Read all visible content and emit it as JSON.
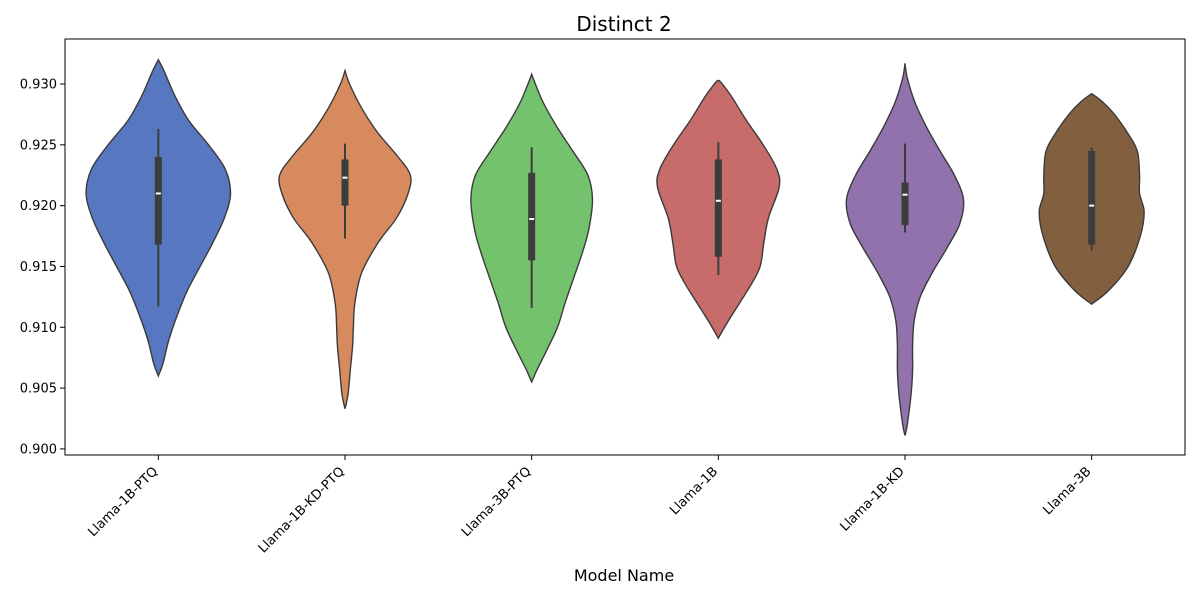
{
  "chart_data": {
    "type": "violin",
    "title": "Distinct 2",
    "xlabel": "Model Name",
    "ylabel": "",
    "ylim": [
      0.8995,
      0.9337
    ],
    "yticks": [
      "0.900",
      "0.905",
      "0.910",
      "0.915",
      "0.920",
      "0.925",
      "0.930"
    ],
    "xtick_rotation_deg": 45,
    "grid": false,
    "legend": "none",
    "categories": [
      "Llama-1B-PTQ",
      "Llama-1B-KD-PTQ",
      "Llama-3B-PTQ",
      "Llama-1B",
      "Llama-1B-KD",
      "Llama-3B"
    ],
    "series": [
      {
        "category": "Llama-1B-PTQ",
        "color": "#5778c0",
        "box": {
          "whisker_low": 0.9117,
          "q1": 0.9168,
          "median": 0.921,
          "q3": 0.924,
          "whisker_high": 0.9263
        },
        "density": [
          [
            0.906,
            0.0
          ],
          [
            0.907,
            0.06
          ],
          [
            0.909,
            0.14
          ],
          [
            0.911,
            0.25
          ],
          [
            0.913,
            0.38
          ],
          [
            0.915,
            0.55
          ],
          [
            0.917,
            0.72
          ],
          [
            0.919,
            0.87
          ],
          [
            0.921,
            0.95
          ],
          [
            0.923,
            0.88
          ],
          [
            0.925,
            0.66
          ],
          [
            0.927,
            0.4
          ],
          [
            0.929,
            0.22
          ],
          [
            0.931,
            0.08
          ],
          [
            0.932,
            0.0
          ]
        ]
      },
      {
        "category": "Llama-1B-KD-PTQ",
        "color": "#d88a5f",
        "box": {
          "whisker_low": 0.9173,
          "q1": 0.92,
          "median": 0.9223,
          "q3": 0.9238,
          "whisker_high": 0.9251
        },
        "density": [
          [
            0.9033,
            0.0
          ],
          [
            0.9045,
            0.04
          ],
          [
            0.9065,
            0.07
          ],
          [
            0.9085,
            0.1
          ],
          [
            0.91,
            0.11
          ],
          [
            0.912,
            0.13
          ],
          [
            0.9145,
            0.22
          ],
          [
            0.917,
            0.44
          ],
          [
            0.919,
            0.68
          ],
          [
            0.921,
            0.83
          ],
          [
            0.9225,
            0.86
          ],
          [
            0.924,
            0.7
          ],
          [
            0.926,
            0.43
          ],
          [
            0.928,
            0.22
          ],
          [
            0.93,
            0.06
          ],
          [
            0.9311,
            0.0
          ]
        ]
      },
      {
        "category": "Llama-3B-PTQ",
        "color": "#74c26e",
        "box": {
          "whisker_low": 0.9116,
          "q1": 0.9155,
          "median": 0.9189,
          "q3": 0.9227,
          "whisker_high": 0.9248
        },
        "density": [
          [
            0.9055,
            0.0
          ],
          [
            0.9065,
            0.07
          ],
          [
            0.908,
            0.19
          ],
          [
            0.91,
            0.34
          ],
          [
            0.912,
            0.44
          ],
          [
            0.914,
            0.55
          ],
          [
            0.916,
            0.66
          ],
          [
            0.918,
            0.75
          ],
          [
            0.9205,
            0.8
          ],
          [
            0.9225,
            0.74
          ],
          [
            0.9245,
            0.54
          ],
          [
            0.9265,
            0.33
          ],
          [
            0.9285,
            0.15
          ],
          [
            0.9303,
            0.03
          ],
          [
            0.9308,
            0.0
          ]
        ]
      },
      {
        "category": "Llama-1B",
        "color": "#c86b6b",
        "box": {
          "whisker_low": 0.9143,
          "q1": 0.9158,
          "median": 0.9204,
          "q3": 0.9238,
          "whisker_high": 0.9252
        },
        "density": [
          [
            0.9091,
            0.0
          ],
          [
            0.9103,
            0.11
          ],
          [
            0.912,
            0.28
          ],
          [
            0.9135,
            0.43
          ],
          [
            0.915,
            0.55
          ],
          [
            0.917,
            0.6
          ],
          [
            0.919,
            0.66
          ],
          [
            0.9215,
            0.8
          ],
          [
            0.923,
            0.77
          ],
          [
            0.925,
            0.59
          ],
          [
            0.927,
            0.37
          ],
          [
            0.929,
            0.17
          ],
          [
            0.9301,
            0.04
          ],
          [
            0.9303,
            0.0
          ]
        ]
      },
      {
        "category": "Llama-1B-KD",
        "color": "#9172ac",
        "box": {
          "whisker_low": 0.9178,
          "q1": 0.9184,
          "median": 0.9209,
          "q3": 0.9219,
          "whisker_high": 0.9251
        },
        "density": [
          [
            0.9011,
            0.0
          ],
          [
            0.902,
            0.03
          ],
          [
            0.9045,
            0.08
          ],
          [
            0.9065,
            0.1
          ],
          [
            0.9085,
            0.1
          ],
          [
            0.9105,
            0.12
          ],
          [
            0.9125,
            0.2
          ],
          [
            0.9145,
            0.36
          ],
          [
            0.9165,
            0.55
          ],
          [
            0.9185,
            0.72
          ],
          [
            0.9205,
            0.77
          ],
          [
            0.9225,
            0.65
          ],
          [
            0.9245,
            0.46
          ],
          [
            0.9265,
            0.28
          ],
          [
            0.9285,
            0.13
          ],
          [
            0.9305,
            0.03
          ],
          [
            0.9317,
            0.0
          ]
        ]
      },
      {
        "category": "Llama-3B",
        "color": "#82603f",
        "box": {
          "whisker_low": 0.9163,
          "q1": 0.9168,
          "median": 0.92,
          "q3": 0.9245,
          "whisker_high": 0.9248
        },
        "density": [
          [
            0.9119,
            0.0
          ],
          [
            0.913,
            0.22
          ],
          [
            0.915,
            0.48
          ],
          [
            0.9175,
            0.64
          ],
          [
            0.9195,
            0.69
          ],
          [
            0.921,
            0.63
          ],
          [
            0.9225,
            0.63
          ],
          [
            0.9245,
            0.6
          ],
          [
            0.926,
            0.47
          ],
          [
            0.9275,
            0.3
          ],
          [
            0.9286,
            0.13
          ],
          [
            0.9292,
            0.0
          ]
        ]
      }
    ]
  }
}
